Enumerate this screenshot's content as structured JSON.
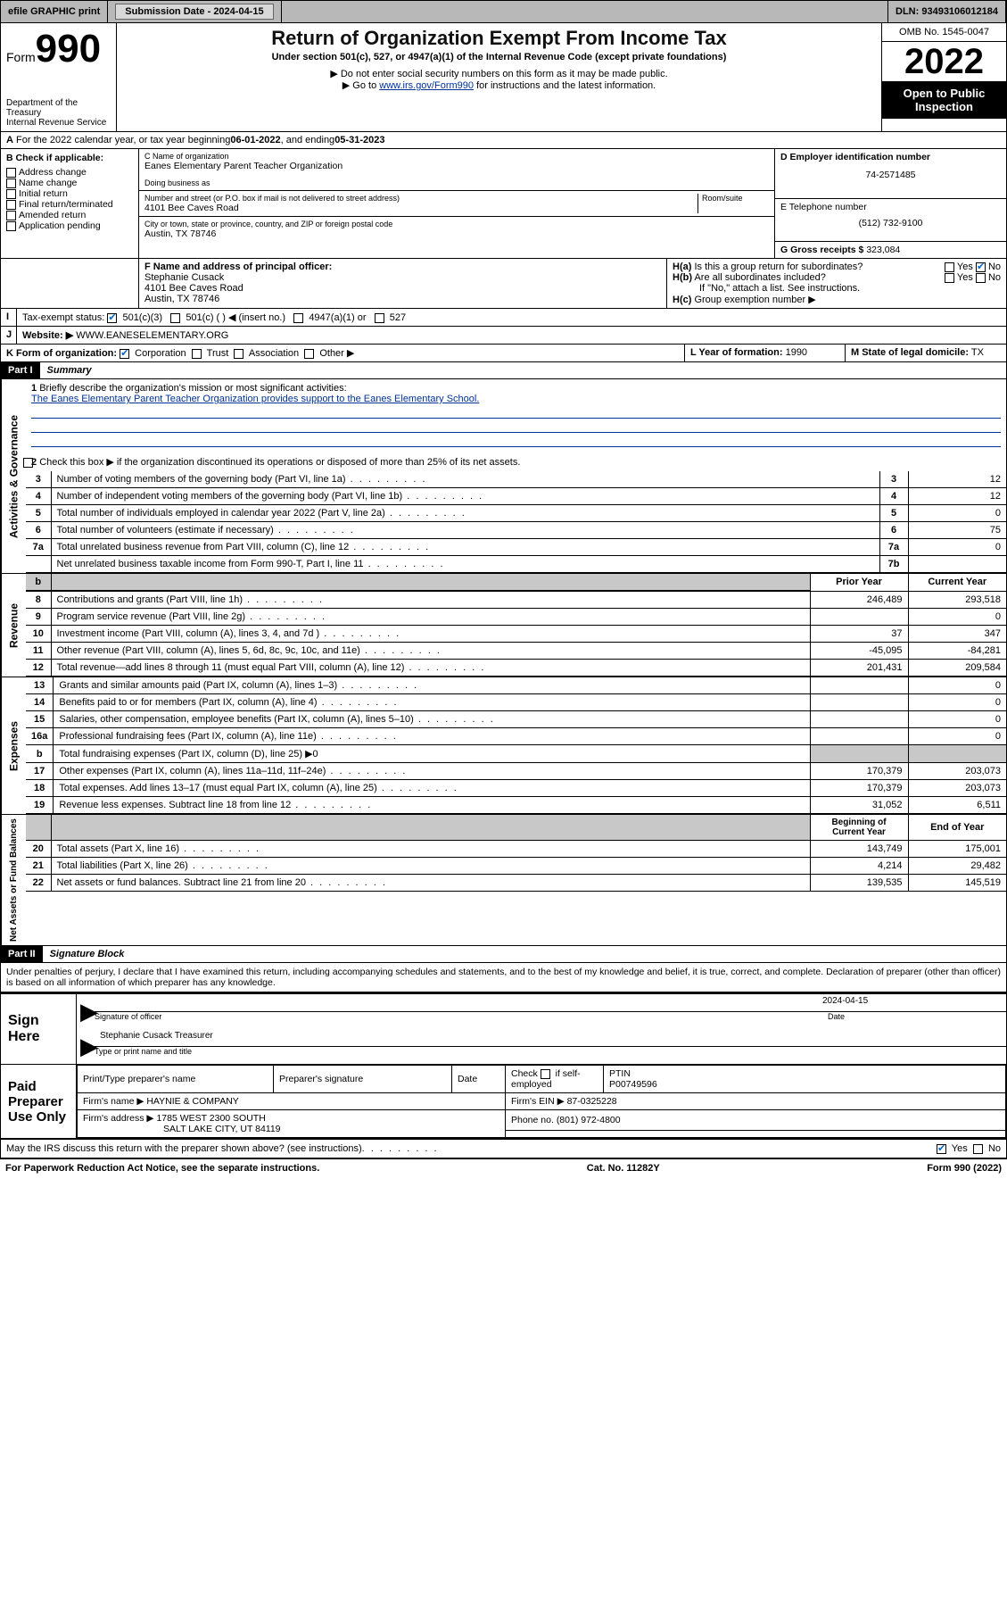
{
  "topbar": {
    "efile": "efile GRAPHIC print",
    "submission_label": "Submission Date - 2024-04-15",
    "dln_label": "DLN: 93493106012184"
  },
  "header": {
    "form_prefix": "Form",
    "form_number": "990",
    "dept": "Department of the Treasury",
    "irs": "Internal Revenue Service",
    "title": "Return of Organization Exempt From Income Tax",
    "subtitle": "Under section 501(c), 527, or 4947(a)(1) of the Internal Revenue Code (except private foundations)",
    "note1": "▶ Do not enter social security numbers on this form as it may be made public.",
    "note2_pre": "▶ Go to ",
    "note2_link": "www.irs.gov/Form990",
    "note2_post": " for instructions and the latest information.",
    "omb": "OMB No. 1545-0047",
    "year": "2022",
    "open": "Open to Public Inspection"
  },
  "lineA": {
    "text_pre": "For the 2022 calendar year, or tax year beginning ",
    "begin": "06-01-2022",
    "mid": " , and ending ",
    "end": "05-31-2023"
  },
  "boxB": {
    "label": "B Check if applicable:",
    "items": [
      "Address change",
      "Name change",
      "Initial return",
      "Final return/terminated",
      "Amended return",
      "Application pending"
    ]
  },
  "boxC": {
    "name_label": "C Name of organization",
    "name": "Eanes Elementary Parent Teacher Organization",
    "dba_label": "Doing business as",
    "dba": "",
    "street_label": "Number and street (or P.O. box if mail is not delivered to street address)",
    "room_label": "Room/suite",
    "street": "4101 Bee Caves Road",
    "city_label": "City or town, state or province, country, and ZIP or foreign postal code",
    "city": "Austin, TX  78746"
  },
  "boxD": {
    "label": "D Employer identification number",
    "value": "74-2571485"
  },
  "boxE": {
    "label": "E Telephone number",
    "value": "(512) 732-9100"
  },
  "boxG": {
    "label": "G Gross receipts $",
    "value": "323,084"
  },
  "boxF": {
    "label": "F Name and address of principal officer:",
    "name": "Stephanie Cusack",
    "street": "4101 Bee Caves Road",
    "city": "Austin, TX  78746"
  },
  "boxH": {
    "ha": "Is this a group return for subordinates?",
    "hb": "Are all subordinates included?",
    "hb_note": "If \"No,\" attach a list. See instructions.",
    "hc": "Group exemption number ▶",
    "yes": "Yes",
    "no": "No"
  },
  "lineI": {
    "label": "Tax-exempt status:",
    "opts": [
      "501(c)(3)",
      "501(c) (  ) ◀ (insert no.)",
      "4947(a)(1) or",
      "527"
    ]
  },
  "lineJ": {
    "label": "Website: ▶",
    "value": "WWW.EANESELEMENTARY.ORG"
  },
  "lineK": {
    "label": "K Form of organization:",
    "opts": [
      "Corporation",
      "Trust",
      "Association",
      "Other ▶"
    ]
  },
  "lineL": {
    "label": "L Year of formation:",
    "value": "1990"
  },
  "lineM": {
    "label": "M State of legal domicile:",
    "value": "TX"
  },
  "part1": {
    "hdr": "Part I",
    "title": "Summary"
  },
  "gov": {
    "label": "Activities & Governance",
    "l1": "Briefly describe the organization's mission or most significant activities:",
    "l1_text": "The Eanes Elementary Parent Teacher Organization provides support to the Eanes Elementary School.",
    "l2": "Check this box ▶      if the organization discontinued its operations or disposed of more than 25% of its net assets.",
    "rows": [
      {
        "n": "3",
        "t": "Number of voting members of the governing body (Part VI, line 1a)",
        "b": "3",
        "v": "12"
      },
      {
        "n": "4",
        "t": "Number of independent voting members of the governing body (Part VI, line 1b)",
        "b": "4",
        "v": "12"
      },
      {
        "n": "5",
        "t": "Total number of individuals employed in calendar year 2022 (Part V, line 2a)",
        "b": "5",
        "v": "0"
      },
      {
        "n": "6",
        "t": "Total number of volunteers (estimate if necessary)",
        "b": "6",
        "v": "75"
      },
      {
        "n": "7a",
        "t": "Total unrelated business revenue from Part VIII, column (C), line 12",
        "b": "7a",
        "v": "0"
      },
      {
        "n": "",
        "t": "Net unrelated business taxable income from Form 990-T, Part I, line 11",
        "b": "7b",
        "v": ""
      }
    ]
  },
  "rev": {
    "label": "Revenue",
    "hdr_prior": "Prior Year",
    "hdr_curr": "Current Year",
    "rows": [
      {
        "n": "8",
        "t": "Contributions and grants (Part VIII, line 1h)",
        "p": "246,489",
        "c": "293,518"
      },
      {
        "n": "9",
        "t": "Program service revenue (Part VIII, line 2g)",
        "p": "",
        "c": "0"
      },
      {
        "n": "10",
        "t": "Investment income (Part VIII, column (A), lines 3, 4, and 7d )",
        "p": "37",
        "c": "347"
      },
      {
        "n": "11",
        "t": "Other revenue (Part VIII, column (A), lines 5, 6d, 8c, 9c, 10c, and 11e)",
        "p": "-45,095",
        "c": "-84,281"
      },
      {
        "n": "12",
        "t": "Total revenue—add lines 8 through 11 (must equal Part VIII, column (A), line 12)",
        "p": "201,431",
        "c": "209,584"
      }
    ]
  },
  "exp": {
    "label": "Expenses",
    "rows": [
      {
        "n": "13",
        "t": "Grants and similar amounts paid (Part IX, column (A), lines 1–3)",
        "p": "",
        "c": "0"
      },
      {
        "n": "14",
        "t": "Benefits paid to or for members (Part IX, column (A), line 4)",
        "p": "",
        "c": "0"
      },
      {
        "n": "15",
        "t": "Salaries, other compensation, employee benefits (Part IX, column (A), lines 5–10)",
        "p": "",
        "c": "0"
      },
      {
        "n": "16a",
        "t": "Professional fundraising fees (Part IX, column (A), line 11e)",
        "p": "",
        "c": "0"
      },
      {
        "n": "b",
        "t": "Total fundraising expenses (Part IX, column (D), line 25) ▶0",
        "p": "GREY",
        "c": "GREY"
      },
      {
        "n": "17",
        "t": "Other expenses (Part IX, column (A), lines 11a–11d, 11f–24e)",
        "p": "170,379",
        "c": "203,073"
      },
      {
        "n": "18",
        "t": "Total expenses. Add lines 13–17 (must equal Part IX, column (A), line 25)",
        "p": "170,379",
        "c": "203,073"
      },
      {
        "n": "19",
        "t": "Revenue less expenses. Subtract line 18 from line 12",
        "p": "31,052",
        "c": "6,511"
      }
    ]
  },
  "net": {
    "label": "Net Assets or Fund Balances",
    "hdr_begin": "Beginning of Current Year",
    "hdr_end": "End of Year",
    "rows": [
      {
        "n": "20",
        "t": "Total assets (Part X, line 16)",
        "p": "143,749",
        "c": "175,001"
      },
      {
        "n": "21",
        "t": "Total liabilities (Part X, line 26)",
        "p": "4,214",
        "c": "29,482"
      },
      {
        "n": "22",
        "t": "Net assets or fund balances. Subtract line 21 from line 20",
        "p": "139,535",
        "c": "145,519"
      }
    ]
  },
  "part2": {
    "hdr": "Part II",
    "title": "Signature Block"
  },
  "penalties": "Under penalties of perjury, I declare that I have examined this return, including accompanying schedules and statements, and to the best of my knowledge and belief, it is true, correct, and complete. Declaration of preparer (other than officer) is based on all information of which preparer has any knowledge.",
  "sign": {
    "label": "Sign Here",
    "sig_label": "Signature of officer",
    "date_label": "Date",
    "date": "2024-04-15",
    "name": "Stephanie Cusack  Treasurer",
    "name_label": "Type or print name and title"
  },
  "paid": {
    "label": "Paid Preparer Use Only",
    "h1": "Print/Type preparer's name",
    "h2": "Preparer's signature",
    "h3": "Date",
    "h4_pre": "Check",
    "h4_post": "if self-employed",
    "h5": "PTIN",
    "ptin": "P00749596",
    "firm_name_label": "Firm's name    ▶",
    "firm_name": "HAYNIE & COMPANY",
    "ein_label": "Firm's EIN ▶",
    "ein": "87-0325228",
    "addr_label": "Firm's address ▶",
    "addr1": "1785 WEST 2300 SOUTH",
    "addr2": "SALT LAKE CITY, UT  84119",
    "phone_label": "Phone no.",
    "phone": "(801) 972-4800"
  },
  "may": {
    "text": "May the IRS discuss this return with the preparer shown above? (see instructions)",
    "yes": "Yes",
    "no": "No"
  },
  "footer": {
    "left": "For Paperwork Reduction Act Notice, see the separate instructions.",
    "mid": "Cat. No. 11282Y",
    "right": "Form 990 (2022)"
  }
}
